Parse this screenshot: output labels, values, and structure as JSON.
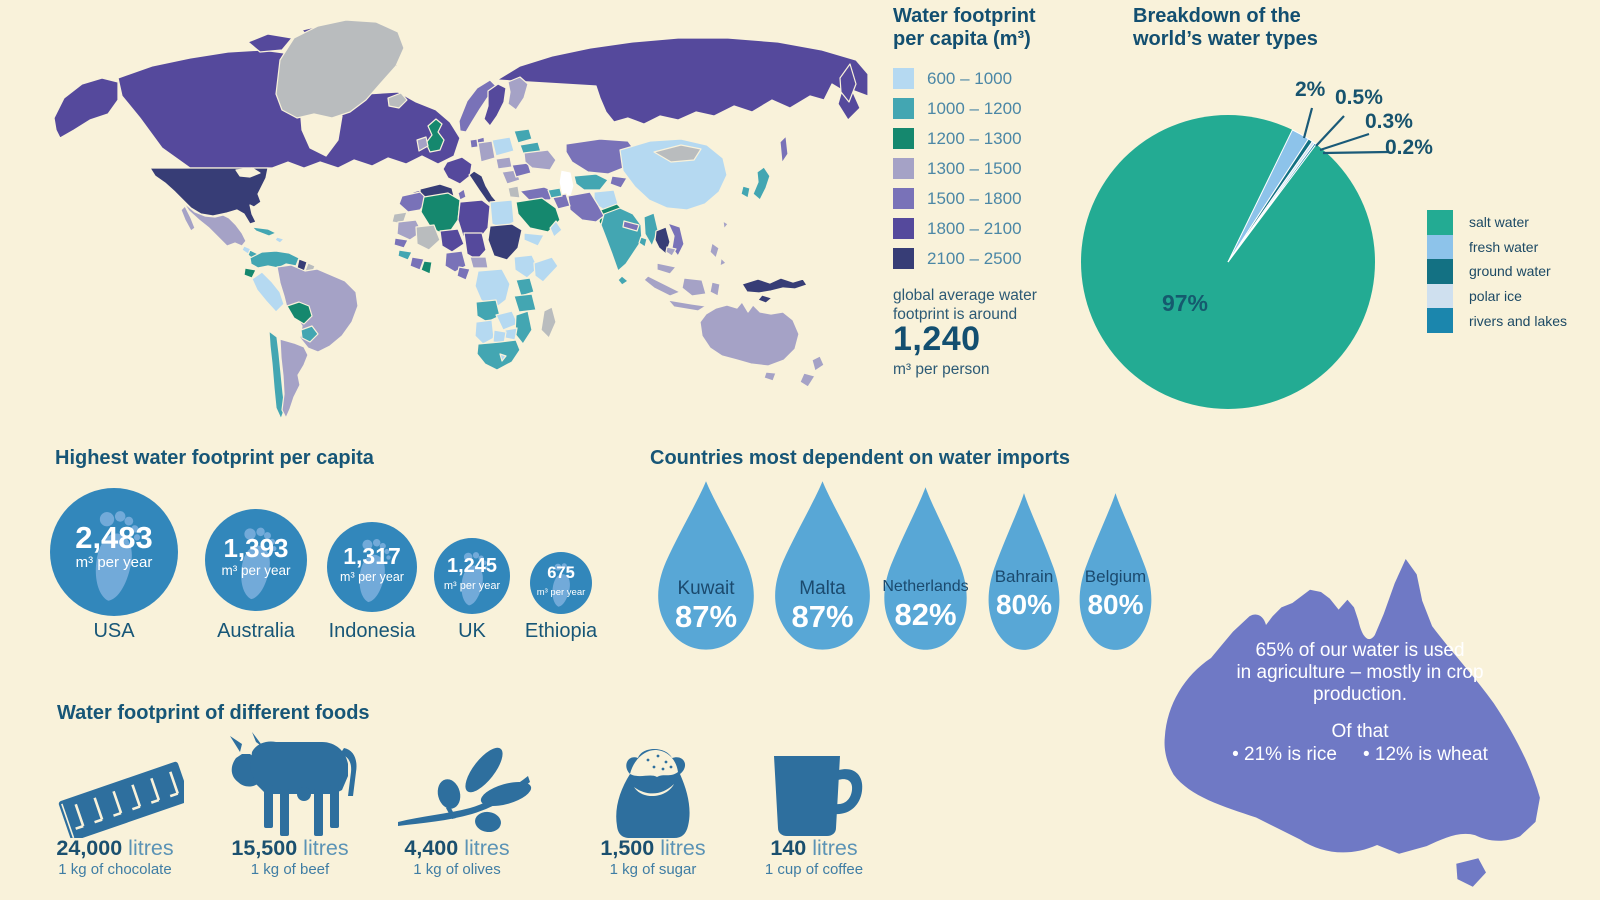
{
  "background_color": "#f9f2da",
  "chart_data": [
    {
      "type": "choropleth",
      "title_line1": "Water footprint",
      "title_line2": "per capita (m³)",
      "bins": [
        {
          "range": "600 – 1000",
          "color": "#b5d9f1"
        },
        {
          "range": "1000 – 1200",
          "color": "#43a6b2"
        },
        {
          "range": "1200 – 1300",
          "color": "#15886e"
        },
        {
          "range": "1300 – 1500",
          "color": "#a5a2c6"
        },
        {
          "range": "1500 – 1800",
          "color": "#7972b8"
        },
        {
          "range": "1800 – 2100",
          "color": "#55499c"
        },
        {
          "range": "2100 – 2500",
          "color": "#373d76"
        }
      ],
      "no_data_color": "#b9bcbe",
      "note_line1": "global average water",
      "note_line2": "footprint is around",
      "average_value": "1,240",
      "average_unit": "m³ per person"
    },
    {
      "type": "pie",
      "title_line1": "Breakdown of the",
      "title_line2": "world’s water types",
      "start_angle_deg": 26,
      "legend_position": "right",
      "slices": [
        {
          "label": "salt water",
          "value": 97,
          "display": "97%",
          "color": "#23ab93"
        },
        {
          "label": "fresh water",
          "value": 2,
          "display": "2%",
          "color": "#8dc3ea"
        },
        {
          "label": "ground water",
          "value": 0.5,
          "display": "0.5%",
          "color": "#137183"
        },
        {
          "label": "polar ice",
          "value": 0.3,
          "display": "0.3%",
          "color": "#cfe0ef"
        },
        {
          "label": "rivers and lakes",
          "value": 0.2,
          "display": "0.2%",
          "color": "#1b86ad"
        }
      ]
    },
    {
      "type": "pictogram-circles",
      "title": "Highest water footprint per capita",
      "unit": "m³ per year",
      "items": [
        {
          "country": "USA",
          "value": 2483,
          "display": "2,483"
        },
        {
          "country": "Australia",
          "value": 1393,
          "display": "1,393"
        },
        {
          "country": "Indonesia",
          "value": 1317,
          "display": "1,317"
        },
        {
          "country": "UK",
          "value": 1245,
          "display": "1,245"
        },
        {
          "country": "Ethiopia",
          "value": 675,
          "display": "675"
        }
      ]
    },
    {
      "type": "pictogram-drops",
      "title": "Countries most dependent on water imports",
      "items": [
        {
          "country": "Kuwait",
          "value": 87,
          "display": "87%"
        },
        {
          "country": "Malta",
          "value": 87,
          "display": "87%"
        },
        {
          "country": "Netherlands",
          "value": 82,
          "display": "82%"
        },
        {
          "country": "Bahrain",
          "value": 80,
          "display": "80%"
        },
        {
          "country": "Belgium",
          "value": 80,
          "display": "80%"
        }
      ]
    },
    {
      "type": "pictogram-foods",
      "title": "Water footprint of different foods",
      "unit": "litres",
      "items": [
        {
          "icon": "chocolate-bar-icon",
          "value": 24000,
          "display": "24,000",
          "caption": "1 kg of chocolate"
        },
        {
          "icon": "cow-icon",
          "value": 15500,
          "display": "15,500",
          "caption": "1 kg of beef"
        },
        {
          "icon": "olive-branch-icon",
          "value": 4400,
          "display": "4,400",
          "caption": "1 kg of olives"
        },
        {
          "icon": "sugar-sack-icon",
          "value": 1500,
          "display": "1,500",
          "caption": "1 kg of sugar"
        },
        {
          "icon": "coffee-mug-icon",
          "value": 140,
          "display": "140",
          "caption": "1 cup of coffee"
        }
      ]
    },
    {
      "type": "annotation",
      "shape": "australia-map",
      "color": "#6f79c5",
      "line1": "65% of our water is used",
      "line2": "in agriculture – mostly in crop",
      "line3": "production.",
      "line4": "Of that",
      "bullet1": "• 21% is rice",
      "bullet2": "• 12% is wheat"
    }
  ]
}
